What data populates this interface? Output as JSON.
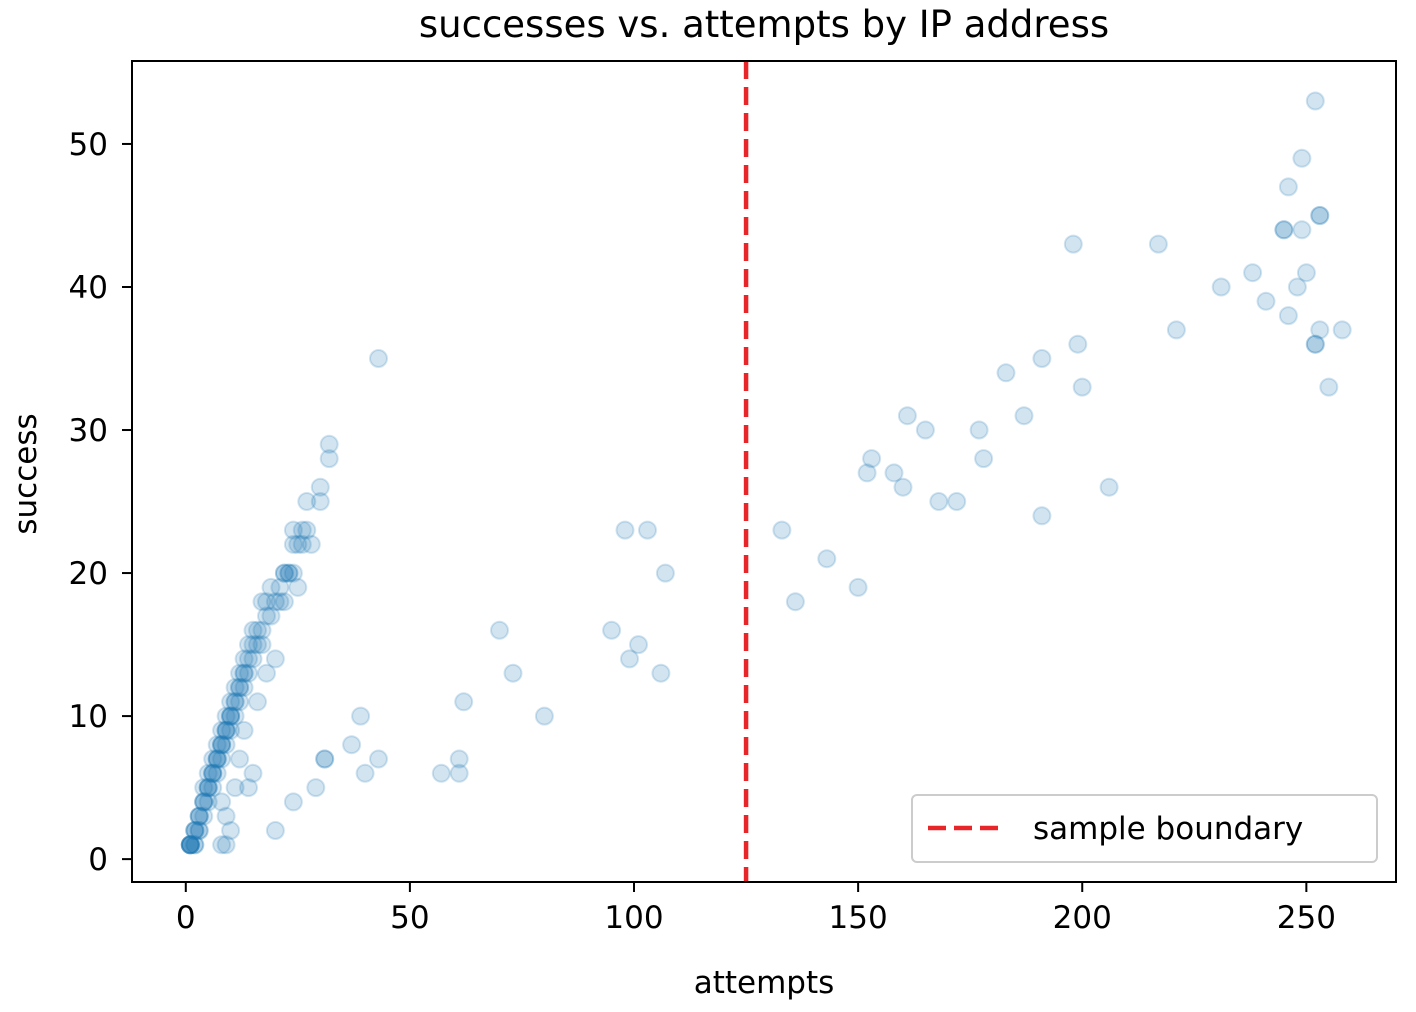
{
  "chart_data": {
    "type": "scatter",
    "title": "successes vs. attempts by IP address",
    "xlabel": "attempts",
    "ylabel": "success",
    "xlim": [
      -12,
      270
    ],
    "ylim": [
      -1.6,
      55.8
    ],
    "xticks": [
      0,
      50,
      100,
      150,
      200,
      250
    ],
    "yticks": [
      0,
      10,
      20,
      30,
      40,
      50
    ],
    "xtick_labels": [
      "0",
      "50",
      "100",
      "150",
      "200",
      "250"
    ],
    "ytick_labels": [
      "0",
      "10",
      "20",
      "30",
      "40",
      "50"
    ],
    "grid": false,
    "point_color": "#1f77b4",
    "point_alpha": 0.2,
    "threshold_line": {
      "x": 125,
      "label": "sample boundary",
      "color": "#e8262a",
      "style": "dashed"
    },
    "legend": {
      "location": "lower-right",
      "entries": [
        "sample boundary"
      ]
    },
    "series": [
      {
        "points": [
          [
            1,
            1
          ],
          [
            1,
            1
          ],
          [
            1,
            1
          ],
          [
            1,
            1
          ],
          [
            1,
            1
          ],
          [
            1,
            1
          ],
          [
            2,
            1
          ],
          [
            2,
            1
          ],
          [
            2,
            2
          ],
          [
            2,
            2
          ],
          [
            2,
            2
          ],
          [
            3,
            2
          ],
          [
            3,
            2
          ],
          [
            3,
            3
          ],
          [
            3,
            3
          ],
          [
            3,
            3
          ],
          [
            4,
            3
          ],
          [
            4,
            4
          ],
          [
            4,
            4
          ],
          [
            4,
            4
          ],
          [
            4,
            5
          ],
          [
            5,
            4
          ],
          [
            5,
            5
          ],
          [
            5,
            5
          ],
          [
            5,
            5
          ],
          [
            5,
            6
          ],
          [
            6,
            5
          ],
          [
            6,
            6
          ],
          [
            6,
            6
          ],
          [
            6,
            6
          ],
          [
            6,
            7
          ],
          [
            7,
            6
          ],
          [
            7,
            7
          ],
          [
            7,
            7
          ],
          [
            7,
            7
          ],
          [
            7,
            8
          ],
          [
            8,
            7
          ],
          [
            8,
            8
          ],
          [
            8,
            8
          ],
          [
            8,
            8
          ],
          [
            8,
            9
          ],
          [
            9,
            8
          ],
          [
            9,
            9
          ],
          [
            9,
            9
          ],
          [
            9,
            9
          ],
          [
            9,
            10
          ],
          [
            10,
            9
          ],
          [
            10,
            10
          ],
          [
            10,
            10
          ],
          [
            10,
            10
          ],
          [
            10,
            11
          ],
          [
            11,
            10
          ],
          [
            11,
            11
          ],
          [
            11,
            11
          ],
          [
            11,
            12
          ],
          [
            12,
            11
          ],
          [
            12,
            12
          ],
          [
            12,
            12
          ],
          [
            12,
            13
          ],
          [
            13,
            12
          ],
          [
            13,
            13
          ],
          [
            13,
            13
          ],
          [
            13,
            14
          ],
          [
            14,
            13
          ],
          [
            14,
            14
          ],
          [
            14,
            15
          ],
          [
            15,
            14
          ],
          [
            15,
            15
          ],
          [
            15,
            16
          ],
          [
            16,
            15
          ],
          [
            16,
            16
          ],
          [
            17,
            15
          ],
          [
            17,
            16
          ],
          [
            17,
            18
          ],
          [
            18,
            17
          ],
          [
            18,
            18
          ],
          [
            19,
            19
          ],
          [
            19,
            17
          ],
          [
            20,
            18
          ],
          [
            21,
            19
          ],
          [
            21,
            18
          ],
          [
            22,
            20
          ],
          [
            22,
            20
          ],
          [
            23,
            20
          ],
          [
            23,
            20
          ],
          [
            24,
            20
          ],
          [
            24,
            22
          ],
          [
            24,
            23
          ],
          [
            25,
            22
          ],
          [
            26,
            23
          ],
          [
            26,
            22
          ],
          [
            27,
            23
          ],
          [
            28,
            22
          ],
          [
            27,
            25
          ],
          [
            30,
            25
          ],
          [
            30,
            26
          ],
          [
            32,
            28
          ],
          [
            32,
            29
          ],
          [
            31,
            7
          ],
          [
            31,
            7
          ],
          [
            29,
            5
          ],
          [
            24,
            4
          ],
          [
            20,
            2
          ],
          [
            14,
            5
          ],
          [
            15,
            6
          ],
          [
            9,
            1
          ],
          [
            8,
            1
          ],
          [
            10,
            2
          ],
          [
            9,
            3
          ],
          [
            8,
            4
          ],
          [
            11,
            5
          ],
          [
            12,
            7
          ],
          [
            13,
            9
          ],
          [
            16,
            11
          ],
          [
            18,
            13
          ],
          [
            20,
            14
          ],
          [
            22,
            18
          ],
          [
            25,
            19
          ],
          [
            43,
            35
          ],
          [
            37,
            8
          ],
          [
            39,
            10
          ],
          [
            40,
            6
          ],
          [
            43,
            7
          ],
          [
            57,
            6
          ],
          [
            61,
            7
          ],
          [
            61,
            6
          ],
          [
            62,
            11
          ],
          [
            70,
            16
          ],
          [
            73,
            13
          ],
          [
            80,
            10
          ],
          [
            95,
            16
          ],
          [
            98,
            23
          ],
          [
            99,
            14
          ],
          [
            101,
            15
          ],
          [
            103,
            23
          ],
          [
            106,
            13
          ],
          [
            107,
            20
          ],
          [
            133,
            23
          ],
          [
            136,
            18
          ],
          [
            143,
            21
          ],
          [
            150,
            19
          ],
          [
            152,
            27
          ],
          [
            153,
            28
          ],
          [
            158,
            27
          ],
          [
            160,
            26
          ],
          [
            161,
            31
          ],
          [
            165,
            30
          ],
          [
            168,
            25
          ],
          [
            172,
            25
          ],
          [
            177,
            30
          ],
          [
            178,
            28
          ],
          [
            183,
            34
          ],
          [
            187,
            31
          ],
          [
            191,
            35
          ],
          [
            191,
            24
          ],
          [
            198,
            43
          ],
          [
            199,
            36
          ],
          [
            200,
            33
          ],
          [
            206,
            26
          ],
          [
            217,
            43
          ],
          [
            221,
            37
          ],
          [
            231,
            40
          ],
          [
            238,
            41
          ],
          [
            241,
            39
          ],
          [
            245,
            44
          ],
          [
            245,
            44
          ],
          [
            246,
            47
          ],
          [
            246,
            38
          ],
          [
            248,
            40
          ],
          [
            249,
            49
          ],
          [
            249,
            44
          ],
          [
            250,
            41
          ],
          [
            252,
            53
          ],
          [
            252,
            36
          ],
          [
            252,
            36
          ],
          [
            253,
            45
          ],
          [
            253,
            45
          ],
          [
            253,
            37
          ],
          [
            255,
            33
          ],
          [
            258,
            37
          ]
        ]
      }
    ]
  }
}
